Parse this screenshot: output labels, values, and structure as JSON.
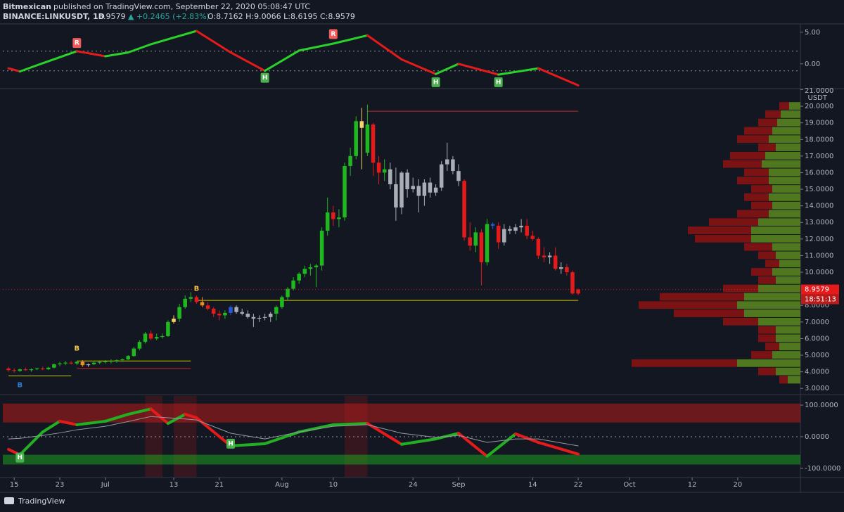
{
  "header": {
    "author": "Bitmexican",
    "published": "published on TradingView.com, September 22, 2020 05:08:47 UTC",
    "symbol": "BINANCE:LINKUSDT, 1D",
    "price": "8.9579",
    "change": "▲ +0.2465 (+2.83%)",
    "ohlc": "O:8.7162 H:9.0066 L:8.6195 C:8.9579"
  },
  "footer": {
    "brand": "TradingView"
  },
  "chart_data": [
    {
      "type": "line",
      "x": [
        "2020-06-14",
        "2020-06-16",
        "2020-06-20",
        "2020-06-26",
        "2020-07-01",
        "2020-07-05",
        "2020-07-09",
        "2020-07-17",
        "2020-07-23",
        "2020-07-29",
        "2020-08-04",
        "2020-08-10",
        "2020-08-16",
        "2020-08-22",
        "2020-08-28",
        "2020-09-01",
        "2020-09-08",
        "2020-09-15",
        "2020-09-22"
      ],
      "series": [
        {
          "values": [
            -0.7,
            -1.2,
            0.1,
            2.0,
            1.2,
            1.8,
            3.1,
            5.2,
            1.8,
            -1.1,
            2.1,
            3.2,
            4.5,
            0.7,
            -1.6,
            0.0,
            -1.7,
            -0.7,
            -3.4
          ],
          "up_color": "#2bd12b",
          "down_color": "#e51b1b",
          "width": 3
        }
      ],
      "levels": [
        2.0,
        -1.1
      ],
      "signals": [
        {
          "x": "2020-06-26",
          "value": 3.3,
          "label": "R",
          "color": "#f05a5a"
        },
        {
          "x": "2020-08-10",
          "value": 4.7,
          "label": "R",
          "color": "#f05a5a"
        },
        {
          "x": "2020-07-29",
          "value": -2.2,
          "label": "H",
          "color": "#4caf50"
        },
        {
          "x": "2020-08-28",
          "value": -2.9,
          "label": "H",
          "color": "#4caf50"
        },
        {
          "x": "2020-09-08",
          "value": -2.9,
          "label": "H",
          "color": "#4caf50"
        }
      ],
      "xlim": [
        "2020-06-13",
        "2020-10-31"
      ],
      "ylim": [
        -3.8,
        6.2
      ],
      "yticks": [
        {
          "value": 5,
          "label": "5.00"
        },
        {
          "value": 0,
          "label": "0.00"
        }
      ]
    },
    {
      "type": "candlestick",
      "x": [
        "2020-06-14",
        "2020-06-15",
        "2020-06-16",
        "2020-06-17",
        "2020-06-18",
        "2020-06-19",
        "2020-06-20",
        "2020-06-21",
        "2020-06-22",
        "2020-06-23",
        "2020-06-24",
        "2020-06-25",
        "2020-06-26",
        "2020-06-27",
        "2020-06-28",
        "2020-06-29",
        "2020-06-30",
        "2020-07-01",
        "2020-07-02",
        "2020-07-03",
        "2020-07-04",
        "2020-07-05",
        "2020-07-06",
        "2020-07-07",
        "2020-07-08",
        "2020-07-09",
        "2020-07-10",
        "2020-07-11",
        "2020-07-12",
        "2020-07-13",
        "2020-07-14",
        "2020-07-15",
        "2020-07-16",
        "2020-07-17",
        "2020-07-18",
        "2020-07-19",
        "2020-07-20",
        "2020-07-21",
        "2020-07-22",
        "2020-07-23",
        "2020-07-24",
        "2020-07-25",
        "2020-07-26",
        "2020-07-27",
        "2020-07-28",
        "2020-07-29",
        "2020-07-30",
        "2020-07-31",
        "2020-08-01",
        "2020-08-02",
        "2020-08-03",
        "2020-08-04",
        "2020-08-05",
        "2020-08-06",
        "2020-08-07",
        "2020-08-08",
        "2020-08-09",
        "2020-08-10",
        "2020-08-11",
        "2020-08-12",
        "2020-08-13",
        "2020-08-14",
        "2020-08-15",
        "2020-08-16",
        "2020-08-17",
        "2020-08-18",
        "2020-08-19",
        "2020-08-20",
        "2020-08-21",
        "2020-08-22",
        "2020-08-23",
        "2020-08-24",
        "2020-08-25",
        "2020-08-26",
        "2020-08-27",
        "2020-08-28",
        "2020-08-29",
        "2020-08-30",
        "2020-08-31",
        "2020-09-01",
        "2020-09-02",
        "2020-09-03",
        "2020-09-04",
        "2020-09-05",
        "2020-09-06",
        "2020-09-07",
        "2020-09-08",
        "2020-09-09",
        "2020-09-10",
        "2020-09-11",
        "2020-09-12",
        "2020-09-13",
        "2020-09-14",
        "2020-09-15",
        "2020-09-16",
        "2020-09-17",
        "2020-09-18",
        "2020-09-19",
        "2020-09-20",
        "2020-09-21",
        "2020-09-22"
      ],
      "open": [
        4.2,
        4.1,
        4.05,
        4.15,
        4.1,
        4.15,
        4.2,
        4.15,
        4.25,
        4.45,
        4.5,
        4.55,
        4.5,
        4.6,
        4.4,
        4.45,
        4.55,
        4.6,
        4.62,
        4.65,
        4.7,
        4.75,
        4.95,
        5.4,
        5.8,
        6.3,
        6.0,
        6.1,
        6.15,
        7.0,
        7.2,
        7.9,
        8.4,
        8.5,
        8.2,
        8.0,
        7.8,
        7.5,
        7.4,
        7.55,
        7.9,
        7.6,
        7.5,
        7.3,
        7.2,
        7.25,
        7.3,
        7.5,
        7.9,
        8.5,
        9.0,
        9.5,
        9.9,
        10.2,
        10.3,
        10.4,
        12.5,
        13.6,
        13.2,
        13.3,
        16.4,
        17.0,
        19.1,
        17.2,
        18.9,
        16.6,
        16.0,
        16.2,
        15.3,
        13.9,
        16.0,
        15.0,
        15.2,
        14.6,
        15.4,
        14.8,
        15.1,
        16.5,
        16.8,
        16.1,
        15.5,
        12.1,
        11.6,
        12.4,
        10.6,
        12.9,
        12.8,
        11.8,
        12.6,
        12.5,
        12.7,
        12.8,
        12.2,
        12.0,
        11.0,
        10.9,
        11.0,
        10.2,
        10.3,
        10.0,
        8.7162
      ],
      "high": [
        4.3,
        4.2,
        4.2,
        4.25,
        4.2,
        4.25,
        4.3,
        4.3,
        4.5,
        4.6,
        4.65,
        4.65,
        4.65,
        4.7,
        4.5,
        4.6,
        4.65,
        4.7,
        4.75,
        4.75,
        4.8,
        5.0,
        5.5,
        5.9,
        6.4,
        6.5,
        6.3,
        6.3,
        7.1,
        7.4,
        8.1,
        8.6,
        8.8,
        8.6,
        8.5,
        8.2,
        7.9,
        7.7,
        7.7,
        8.0,
        8.0,
        7.8,
        7.7,
        7.5,
        7.4,
        7.5,
        7.6,
        8.0,
        8.6,
        9.1,
        9.7,
        10.0,
        10.4,
        10.5,
        10.5,
        12.7,
        14.5,
        14.0,
        13.8,
        16.6,
        17.5,
        19.4,
        19.9,
        20.1,
        19.0,
        17.0,
        16.8,
        16.6,
        16.3,
        16.1,
        16.2,
        15.7,
        15.6,
        15.6,
        15.7,
        15.3,
        16.7,
        17.8,
        17.0,
        16.5,
        15.6,
        13.0,
        12.7,
        12.6,
        13.2,
        13.0,
        13.0,
        12.9,
        12.8,
        12.9,
        13.2,
        13.2,
        12.5,
        12.1,
        11.5,
        11.2,
        11.5,
        10.6,
        10.5,
        10.1,
        9.0066
      ],
      "low": [
        4.0,
        3.95,
        4.0,
        4.05,
        4.0,
        4.1,
        4.1,
        4.1,
        4.2,
        4.35,
        4.4,
        4.45,
        4.4,
        4.3,
        4.3,
        4.4,
        4.45,
        4.5,
        4.5,
        4.55,
        4.6,
        4.7,
        4.9,
        5.3,
        5.7,
        5.9,
        5.9,
        6.0,
        6.1,
        6.9,
        7.0,
        7.8,
        8.2,
        8.1,
        7.9,
        7.7,
        7.3,
        7.1,
        7.2,
        7.4,
        7.5,
        7.4,
        7.2,
        6.7,
        7.0,
        7.1,
        7.0,
        7.1,
        7.8,
        8.3,
        8.9,
        9.3,
        9.7,
        9.8,
        9.1,
        10.1,
        12.2,
        12.8,
        12.7,
        13.1,
        15.8,
        16.8,
        16.2,
        17.0,
        15.8,
        15.3,
        15.5,
        15.0,
        13.1,
        13.5,
        14.5,
        14.8,
        13.6,
        14.0,
        14.5,
        14.6,
        14.9,
        16.1,
        15.9,
        15.2,
        11.9,
        11.3,
        11.2,
        9.2,
        10.4,
        12.6,
        11.4,
        11.6,
        12.3,
        12.3,
        12.4,
        12.0,
        11.9,
        10.8,
        10.6,
        10.5,
        10.1,
        9.9,
        9.8,
        8.65,
        8.6195
      ],
      "close": [
        4.1,
        4.05,
        4.15,
        4.1,
        4.15,
        4.2,
        4.15,
        4.25,
        4.45,
        4.5,
        4.55,
        4.5,
        4.6,
        4.4,
        4.45,
        4.55,
        4.6,
        4.62,
        4.65,
        4.7,
        4.75,
        4.95,
        5.4,
        5.8,
        6.3,
        6.0,
        6.1,
        6.15,
        7.0,
        7.2,
        7.9,
        8.4,
        8.5,
        8.2,
        8.0,
        7.8,
        7.5,
        7.4,
        7.55,
        7.9,
        7.6,
        7.5,
        7.3,
        7.2,
        7.25,
        7.3,
        7.5,
        7.9,
        8.5,
        9.0,
        9.5,
        9.9,
        10.2,
        10.3,
        10.4,
        12.5,
        13.6,
        13.2,
        13.3,
        16.4,
        17.0,
        19.1,
        18.7,
        18.9,
        16.6,
        16.0,
        16.2,
        15.3,
        13.9,
        16.0,
        15.0,
        15.2,
        14.6,
        15.4,
        14.8,
        15.1,
        16.5,
        16.8,
        16.1,
        15.5,
        12.1,
        11.6,
        12.4,
        10.6,
        12.9,
        12.8,
        11.8,
        12.6,
        12.5,
        12.7,
        12.8,
        12.2,
        12.0,
        11.0,
        10.9,
        11.0,
        10.2,
        10.3,
        10.0,
        8.72,
        8.9579
      ],
      "palette": {
        "G": "#1fb81f",
        "R": "#e51b1b",
        "N": "#a9adb5",
        "Y": "#f3d36b",
        "O": "#f08c20",
        "B": "#2b55d8"
      },
      "colors": [
        "R",
        "R",
        "G",
        "R",
        "G",
        "G",
        "R",
        "G",
        "G",
        "G",
        "G",
        "R",
        "G",
        "O",
        "N",
        "G",
        "G",
        "G",
        "G",
        "G",
        "G",
        "G",
        "G",
        "G",
        "G",
        "R",
        "G",
        "G",
        "G",
        "Y",
        "G",
        "G",
        "G",
        "R",
        "O",
        "R",
        "R",
        "R",
        "G",
        "B",
        "N",
        "N",
        "N",
        "N",
        "N",
        "N",
        "N",
        "G",
        "G",
        "G",
        "G",
        "G",
        "G",
        "G",
        "G",
        "G",
        "G",
        "R",
        "G",
        "G",
        "G",
        "G",
        "Y",
        "G",
        "R",
        "R",
        "G",
        "N",
        "N",
        "N",
        "N",
        "N",
        "N",
        "N",
        "N",
        "N",
        "N",
        "N",
        "N",
        "N",
        "R",
        "R",
        "G",
        "R",
        "G",
        "B",
        "R",
        "N",
        "N",
        "N",
        "N",
        "R",
        "R",
        "R",
        "R",
        "N",
        "R",
        "N",
        "R",
        "R",
        "R"
      ],
      "levels": [
        {
          "value": 8.3,
          "from": "2020-07-17",
          "to": "2020-09-22",
          "color": "#c8c800"
        },
        {
          "value": 19.7,
          "from": "2020-08-16",
          "to": "2020-09-22",
          "color": "#c62828"
        },
        {
          "value": 4.65,
          "from": "2020-06-26",
          "to": "2020-07-16",
          "color": "#c8c800"
        },
        {
          "value": 4.2,
          "from": "2020-06-26",
          "to": "2020-07-16",
          "color": "#c62828"
        },
        {
          "value": 3.75,
          "from": "2020-06-14",
          "to": "2020-06-25",
          "color": "#c8c800"
        }
      ],
      "signals": [
        {
          "x": "2020-07-17",
          "value": 9.0,
          "label": "B",
          "color": "#f3c84b"
        },
        {
          "x": "2020-06-26",
          "value": 5.4,
          "label": "B",
          "color": "#f3c84b"
        },
        {
          "x": "2020-06-16",
          "value": 3.2,
          "label": "B",
          "color": "#2a7fd4"
        }
      ],
      "volume_profile": {
        "levels": [
          20.0,
          19.5,
          19.0,
          18.5,
          18.0,
          17.5,
          17.0,
          16.5,
          16.0,
          15.5,
          15.0,
          14.5,
          14.0,
          13.5,
          13.0,
          12.5,
          12.0,
          11.5,
          11.0,
          10.5,
          10.0,
          9.5,
          9.0,
          8.5,
          8.0,
          7.5,
          7.0,
          6.5,
          6.0,
          5.5,
          5.0,
          4.5,
          4.0,
          3.5
        ],
        "buy": [
          16,
          28,
          33,
          40,
          45,
          35,
          50,
          55,
          45,
          45,
          40,
          45,
          40,
          45,
          60,
          70,
          70,
          40,
          35,
          30,
          40,
          35,
          60,
          80,
          90,
          80,
          60,
          35,
          35,
          30,
          40,
          90,
          35,
          18
        ],
        "sell": [
          14,
          22,
          27,
          40,
          45,
          25,
          50,
          55,
          35,
          45,
          30,
          35,
          30,
          45,
          70,
          90,
          80,
          40,
          25,
          20,
          30,
          25,
          50,
          120,
          140,
          100,
          50,
          25,
          25,
          20,
          30,
          150,
          25,
          12
        ],
        "buy_color": "#5b8a1e",
        "sell_color": "#8e1212"
      },
      "unit_label": "USDT",
      "last_price": {
        "value": 8.9579,
        "label": "8.9579"
      },
      "countdown": "18:51:13",
      "xlim": [
        "2020-06-13",
        "2020-10-31"
      ],
      "ylim": [
        2.67,
        21.02
      ],
      "yticks": [
        {
          "value": 21,
          "label": "21.0000"
        },
        {
          "value": 20,
          "label": "20.0000"
        },
        {
          "value": 19,
          "label": "19.0000"
        },
        {
          "value": 18,
          "label": "18.0000"
        },
        {
          "value": 17,
          "label": "17.0000"
        },
        {
          "value": 16,
          "label": "16.0000"
        },
        {
          "value": 15,
          "label": "15.0000"
        },
        {
          "value": 14,
          "label": "14.0000"
        },
        {
          "value": 13,
          "label": "13.0000"
        },
        {
          "value": 12,
          "label": "12.0000"
        },
        {
          "value": 11,
          "label": "11.0000"
        },
        {
          "value": 10,
          "label": "10.0000"
        },
        {
          "value": 8,
          "label": "8.0000"
        },
        {
          "value": 7,
          "label": "7.0000"
        },
        {
          "value": 6,
          "label": "6.0000"
        },
        {
          "value": 5,
          "label": "5.0000"
        },
        {
          "value": 4,
          "label": "4.0000"
        },
        {
          "value": 3,
          "label": "3.0000"
        }
      ]
    },
    {
      "type": "line",
      "x": [
        "2020-06-14",
        "2020-06-16",
        "2020-06-20",
        "2020-06-23",
        "2020-06-26",
        "2020-07-01",
        "2020-07-05",
        "2020-07-09",
        "2020-07-12",
        "2020-07-15",
        "2020-07-17",
        "2020-07-23",
        "2020-07-29",
        "2020-08-04",
        "2020-08-10",
        "2020-08-16",
        "2020-08-22",
        "2020-08-28",
        "2020-09-01",
        "2020-09-06",
        "2020-09-11",
        "2020-09-15",
        "2020-09-22"
      ],
      "series": [
        {
          "values": [
            -40,
            -57,
            15,
            49,
            38,
            49,
            71,
            88,
            42,
            71,
            60,
            -29,
            -22,
            15,
            38,
            42,
            -24,
            -7,
            11,
            -62,
            9,
            -18,
            -55
          ],
          "up_color": "#22b022",
          "down_color": "#e51b1b",
          "width": 4
        },
        {
          "values": [
            -7,
            -5,
            4,
            12,
            22,
            33,
            48,
            64,
            60,
            56,
            53,
            11,
            -7,
            15,
            33,
            38,
            11,
            -2,
            4,
            -18,
            -7,
            -7,
            -29
          ],
          "color": "#9598a1",
          "width": 1
        }
      ],
      "levels": [
        0
      ],
      "bands": [
        {
          "from": 45,
          "to": 105,
          "color": "#b71c1c"
        },
        {
          "from": -88,
          "to": -57,
          "color": "#1f9e1f"
        }
      ],
      "zones": [
        {
          "from": "2020-07-08",
          "to": "2020-07-11"
        },
        {
          "from": "2020-07-13",
          "to": "2020-07-17"
        },
        {
          "from": "2020-08-12",
          "to": "2020-08-16"
        }
      ],
      "signals": [
        {
          "x": "2020-06-16",
          "value": -66,
          "label": "H",
          "color": "#4caf50"
        },
        {
          "x": "2020-07-23",
          "value": -22,
          "label": "H",
          "color": "#4caf50"
        }
      ],
      "xlim": [
        "2020-06-13",
        "2020-10-31"
      ],
      "ylim": [
        -127,
        129
      ],
      "yticks": [
        {
          "value": 100,
          "label": "100.0000"
        },
        {
          "value": 0,
          "label": "0.0000"
        },
        {
          "value": -100,
          "label": "-100.0000"
        }
      ],
      "xticks": [
        {
          "value": "2020-06-15",
          "label": "15"
        },
        {
          "value": "2020-06-23",
          "label": "23"
        },
        {
          "value": "2020-07-01",
          "label": "Jul"
        },
        {
          "value": "2020-07-13",
          "label": "13"
        },
        {
          "value": "2020-07-21",
          "label": "21"
        },
        {
          "value": "2020-08-01",
          "label": "Aug"
        },
        {
          "value": "2020-08-10",
          "label": "10"
        },
        {
          "value": "2020-08-24",
          "label": "24"
        },
        {
          "value": "2020-09-01",
          "label": "Sep"
        },
        {
          "value": "2020-09-14",
          "label": "14"
        },
        {
          "value": "2020-09-22",
          "label": "22"
        },
        {
          "value": "2020-10-01",
          "label": "Oct"
        },
        {
          "value": "2020-10-12",
          "label": "12"
        },
        {
          "value": "2020-10-20",
          "label": "20"
        }
      ]
    }
  ]
}
